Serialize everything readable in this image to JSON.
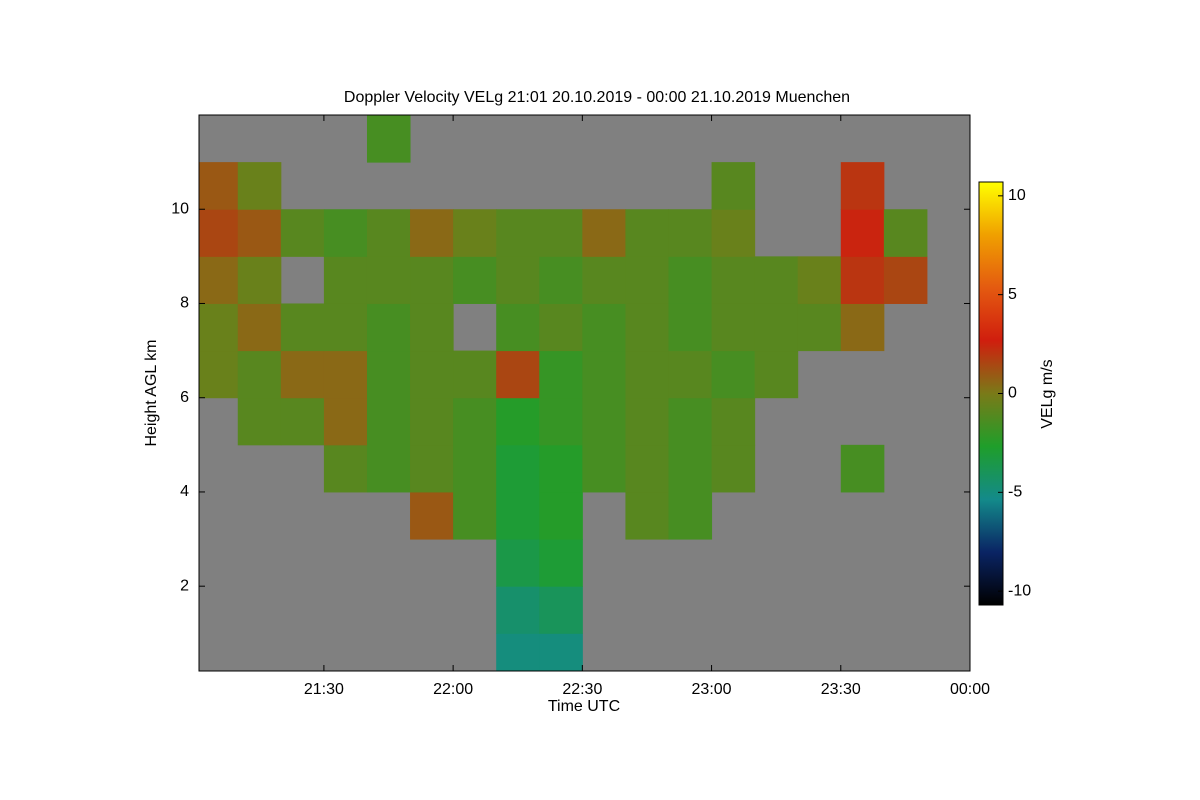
{
  "chart_data": {
    "type": "heatmap",
    "title": "Doppler Velocity VELg   21:01 20.10.2019 - 00:00 21.10.2019 Muenchen",
    "x_label": "Time UTC",
    "y_label": "Height AGL km",
    "colorbar_label": "VELg m/s",
    "background": "#808080",
    "xlim": [
      21.0167,
      24
    ],
    "xticks": [
      {
        "value": 21.5,
        "label": "21:30"
      },
      {
        "value": 22,
        "label": "22:00"
      },
      {
        "value": 22.5,
        "label": "22:30"
      },
      {
        "value": 23,
        "label": "23:00"
      },
      {
        "value": 23.5,
        "label": "23:30"
      },
      {
        "value": 24,
        "label": "00:00"
      }
    ],
    "ylim": [
      0.2,
      12.0
    ],
    "yticks": [
      2,
      4,
      6,
      8,
      10
    ],
    "clim": [
      -10.7,
      10.7
    ],
    "cticks": [
      -10,
      -5,
      0,
      5,
      10
    ],
    "colormap": [
      "#000000",
      "#0a2464",
      "#138a8a",
      "#1f9e2a",
      "#7a7a18",
      "#d01e0e",
      "#e45a10",
      "#f0a000",
      "#ffff00"
    ],
    "xbins": [
      21.0167,
      21.1667,
      21.3333,
      21.5,
      21.6667,
      21.8333,
      22,
      22.1667,
      22.3333,
      22.5,
      22.6667,
      22.8333,
      23,
      23.1667,
      23.3333,
      23.5,
      23.6667,
      23.8333,
      24
    ],
    "ybins": [
      0.2,
      1,
      2,
      3,
      4,
      5,
      6,
      7,
      8,
      9,
      10,
      11,
      12
    ],
    "z": [
      [
        null,
        null,
        null,
        null,
        null,
        null,
        null,
        -5,
        -5,
        null,
        null,
        null,
        null,
        null,
        null,
        null,
        null,
        null
      ],
      [
        null,
        null,
        null,
        null,
        null,
        null,
        null,
        -4.5,
        -4,
        null,
        null,
        null,
        null,
        null,
        null,
        null,
        null,
        null
      ],
      [
        null,
        null,
        null,
        null,
        null,
        null,
        null,
        -3.5,
        -3,
        null,
        null,
        null,
        null,
        null,
        null,
        null,
        null,
        null
      ],
      [
        null,
        null,
        null,
        null,
        null,
        1,
        -1.5,
        -3,
        -2.5,
        null,
        -1,
        -1.5,
        null,
        null,
        null,
        null,
        null,
        null
      ],
      [
        null,
        null,
        null,
        -1,
        -1.5,
        -1,
        -1.5,
        -3,
        -2.5,
        -1.5,
        -1,
        -1.5,
        -1,
        null,
        null,
        -1.5,
        null,
        null
      ],
      [
        null,
        -1,
        -1,
        0.5,
        -1.5,
        -1,
        -1.5,
        -2.5,
        -2,
        -1.5,
        -1,
        -1.5,
        -1,
        null,
        null,
        null,
        null,
        null
      ],
      [
        -0.5,
        -1,
        0.5,
        0.5,
        -1.5,
        -1,
        -1,
        1.5,
        -2,
        -1.5,
        -1,
        -1,
        -1.5,
        -1,
        null,
        null,
        null,
        null
      ],
      [
        -0.5,
        0.5,
        -1,
        -1,
        -1.5,
        -1,
        null,
        -1.5,
        -1,
        -1.5,
        -1,
        -1.5,
        -1,
        -1,
        -1,
        0.5,
        null,
        null
      ],
      [
        0.5,
        -0.5,
        null,
        -1,
        -1,
        -1,
        -1.5,
        -1,
        -1.5,
        -1,
        -1,
        -1.5,
        -1,
        -1,
        -0.5,
        2,
        1.5,
        null
      ],
      [
        1.5,
        1,
        -1,
        -1.5,
        -1,
        0.5,
        -0.5,
        -1,
        -1,
        0.5,
        -1,
        -1,
        -0.5,
        null,
        null,
        2.5,
        -1,
        null
      ],
      [
        1,
        -0.5,
        null,
        null,
        null,
        null,
        null,
        null,
        null,
        null,
        null,
        null,
        -1,
        null,
        null,
        2,
        null,
        null
      ],
      [
        null,
        null,
        null,
        null,
        -1.5,
        null,
        null,
        null,
        null,
        null,
        null,
        null,
        null,
        null,
        null,
        null,
        null,
        null
      ]
    ]
  }
}
